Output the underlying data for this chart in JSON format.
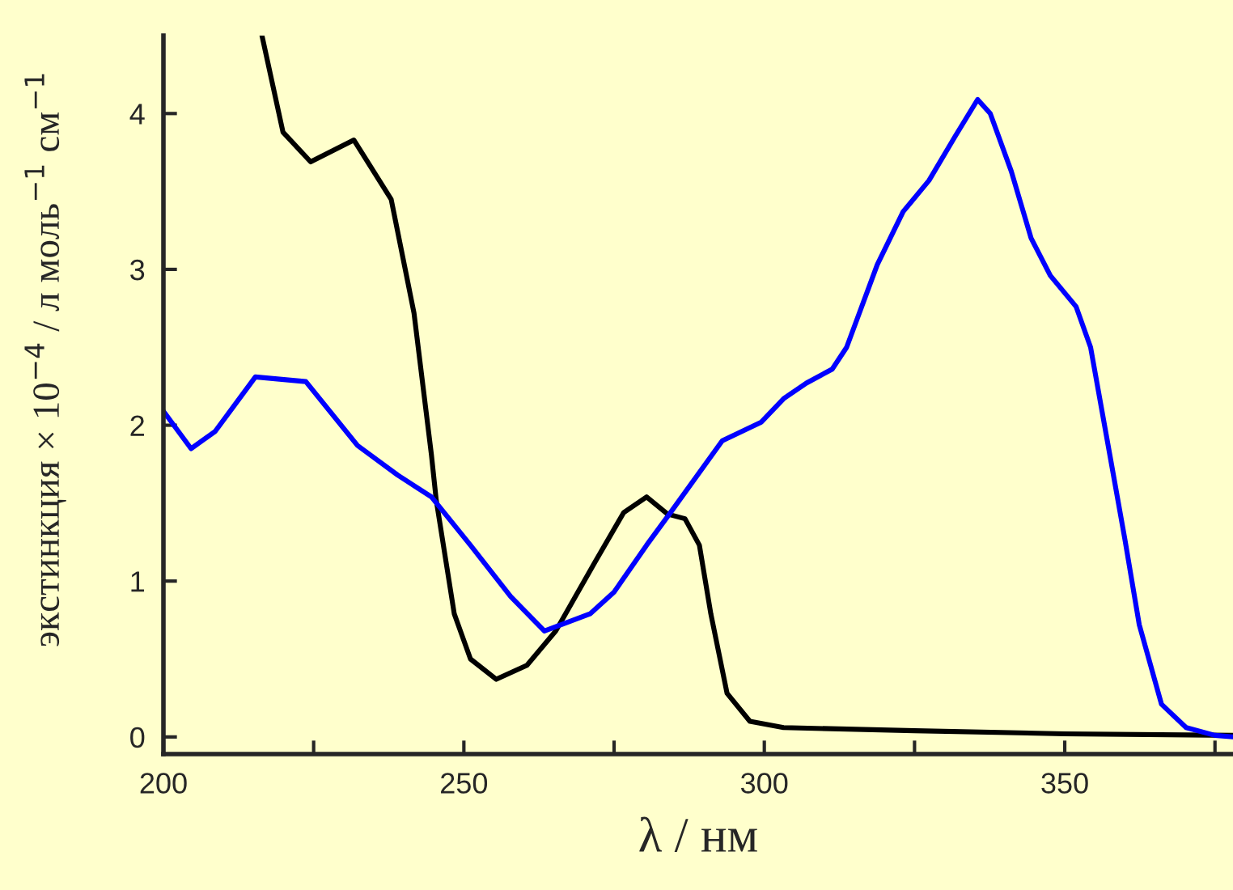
{
  "chart_data": {
    "type": "line",
    "xlabel": "λ / нм",
    "ylabel": "экстинкция × 10$^{−4}$ / л моль$^{−1}$ см$^{−1}$",
    "xlim": [
      200,
      378
    ],
    "ylim": [
      -0.11,
      4.5
    ],
    "xticks": [
      200,
      {
        "value": 225,
        "label": null
      },
      250,
      {
        "value": 275,
        "label": null
      },
      300,
      {
        "value": 325,
        "label": null
      },
      350,
      {
        "value": 375,
        "label": null
      }
    ],
    "yticks": [
      0,
      1,
      2,
      3,
      4
    ],
    "marker": "none",
    "line_style": "solid",
    "series": [
      {
        "color": "#000000",
        "x": [
          216.4,
          219.9,
          224.5,
          231.7,
          237.9,
          239.2,
          241.7,
          244.6,
          245.4,
          248.4,
          251.1,
          255.4,
          260.5,
          265.3,
          271.8,
          276.6,
          280.4,
          283.9,
          286.8,
          289.2,
          291.1,
          293.8,
          297.6,
          303.2,
          325,
          350,
          378
        ],
        "values": [
          4.5,
          3.88,
          3.69,
          3.83,
          3.45,
          3.2,
          2.72,
          1.81,
          1.52,
          0.79,
          0.5,
          0.37,
          0.46,
          0.68,
          1.12,
          1.44,
          1.54,
          1.43,
          1.4,
          1.23,
          0.79,
          0.28,
          0.1,
          0.06,
          0.04,
          0.02,
          0.01
        ]
      },
      {
        "color": "#0000ff",
        "x": [
          200,
          204.6,
          208.6,
          215.3,
          223.7,
          232.3,
          239,
          244.6,
          251.1,
          257.8,
          263.4,
          271,
          275,
          280.4,
          284.4,
          293,
          299.5,
          303.2,
          307,
          311.3,
          313.7,
          318.8,
          323.1,
          327.4,
          331.7,
          335.5,
          337.6,
          341.1,
          344.4,
          347.6,
          351.9,
          354.3,
          357.5,
          360,
          362.4,
          366.1,
          370.2,
          375,
          378
        ],
        "values": [
          2.09,
          1.85,
          1.96,
          2.31,
          2.28,
          1.87,
          1.68,
          1.54,
          1.23,
          0.9,
          0.68,
          0.79,
          0.93,
          1.23,
          1.44,
          1.9,
          2.02,
          2.17,
          2.27,
          2.36,
          2.5,
          3.03,
          3.37,
          3.57,
          3.85,
          4.09,
          4.0,
          3.63,
          3.2,
          2.96,
          2.76,
          2.5,
          1.81,
          1.27,
          0.72,
          0.21,
          0.06,
          0.01,
          0.0
        ]
      }
    ]
  }
}
